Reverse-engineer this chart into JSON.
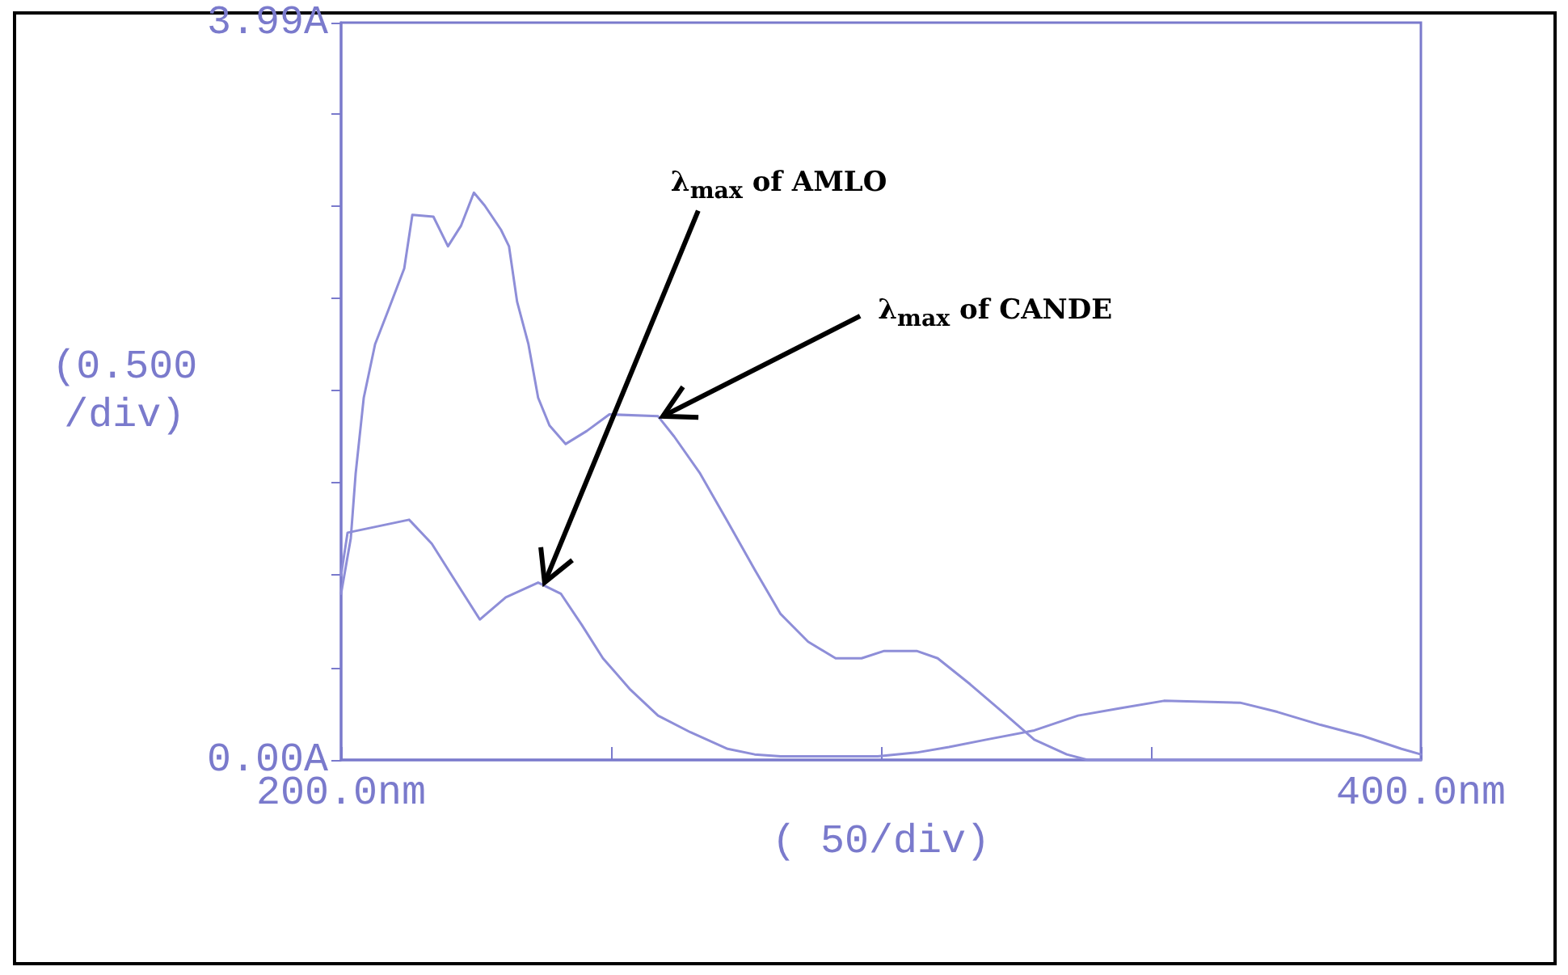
{
  "chart_data": {
    "type": "line",
    "xlabel": "( 50/div)",
    "ylabel": "(0.500 /div)",
    "marker": "none",
    "xlim": [
      200,
      400
    ],
    "xticks": [
      {
        "value": 200,
        "label": "200.0nm"
      },
      {
        "value": 250,
        "label": null
      },
      {
        "value": 300,
        "label": null
      },
      {
        "value": 350,
        "label": null
      },
      {
        "value": 400,
        "label": "400.0nm"
      }
    ],
    "ylim": [
      0,
      3.99
    ],
    "yticks": [
      {
        "value": 0,
        "label": "0.00A"
      },
      {
        "value": 0.5,
        "label": null
      },
      {
        "value": 1,
        "label": null
      },
      {
        "value": 1.5,
        "label": null
      },
      {
        "value": 2,
        "label": null
      },
      {
        "value": 2.5,
        "label": null
      },
      {
        "value": 3,
        "label": null
      },
      {
        "value": 3.5,
        "label": null
      },
      {
        "value": 3.99,
        "label": "3.99A"
      }
    ],
    "series": [
      {
        "color": "#8e8ed8",
        "x": [
          200,
          201.8,
          202.7,
          204.2,
          206.3,
          208.7,
          211.7,
          213.2,
          217.1,
          219.8,
          222.2,
          224.6,
          226.6,
          229.6,
          231.1,
          232.6,
          234.7,
          236.5,
          238.6,
          241.6,
          245.5,
          249.7,
          258.7,
          261.7,
          266.5,
          271.6,
          276.6,
          281.4,
          286.5,
          291.6,
          296.4,
          300.6,
          306.6,
          310.5,
          316.5,
          322.5,
          328.4,
          334.4,
          338.3,
          400
        ],
        "values": [
          0.9,
          1.2,
          1.55,
          1.96,
          2.25,
          2.43,
          2.66,
          2.95,
          2.94,
          2.78,
          2.89,
          3.07,
          3.0,
          2.87,
          2.78,
          2.48,
          2.25,
          1.96,
          1.81,
          1.71,
          1.78,
          1.87,
          1.86,
          1.75,
          1.55,
          1.29,
          1.03,
          0.79,
          0.64,
          0.55,
          0.55,
          0.59,
          0.59,
          0.55,
          0.41,
          0.26,
          0.11,
          0.03,
          0.0,
          0.0
        ]
      },
      {
        "color": "#8e8ed8",
        "x": [
          200,
          201.2,
          212.6,
          216.8,
          220.7,
          225.7,
          230.5,
          236.5,
          240.7,
          244.6,
          248.5,
          253.6,
          258.7,
          264.7,
          271.6,
          276.6,
          281.4,
          299.4,
          306.6,
          312.6,
          319.5,
          328.4,
          336.5,
          344.3,
          352.4,
          366.5,
          373.4,
          381.4,
          389.2,
          396.4,
          400
        ],
        "values": [
          1.0,
          1.23,
          1.3,
          1.17,
          0.99,
          0.76,
          0.88,
          0.96,
          0.9,
          0.73,
          0.55,
          0.38,
          0.24,
          0.15,
          0.06,
          0.03,
          0.02,
          0.02,
          0.04,
          0.07,
          0.11,
          0.16,
          0.24,
          0.28,
          0.32,
          0.31,
          0.26,
          0.19,
          0.13,
          0.06,
          0.03
        ]
      }
    ],
    "annotations": [
      {
        "text": "λ$_{max}$ of AMLO",
        "x": 237.7,
        "y": 0.96
      },
      {
        "text": "λ$_{max}$ of CANDE",
        "x": 259.6,
        "y": 1.86
      }
    ]
  }
}
